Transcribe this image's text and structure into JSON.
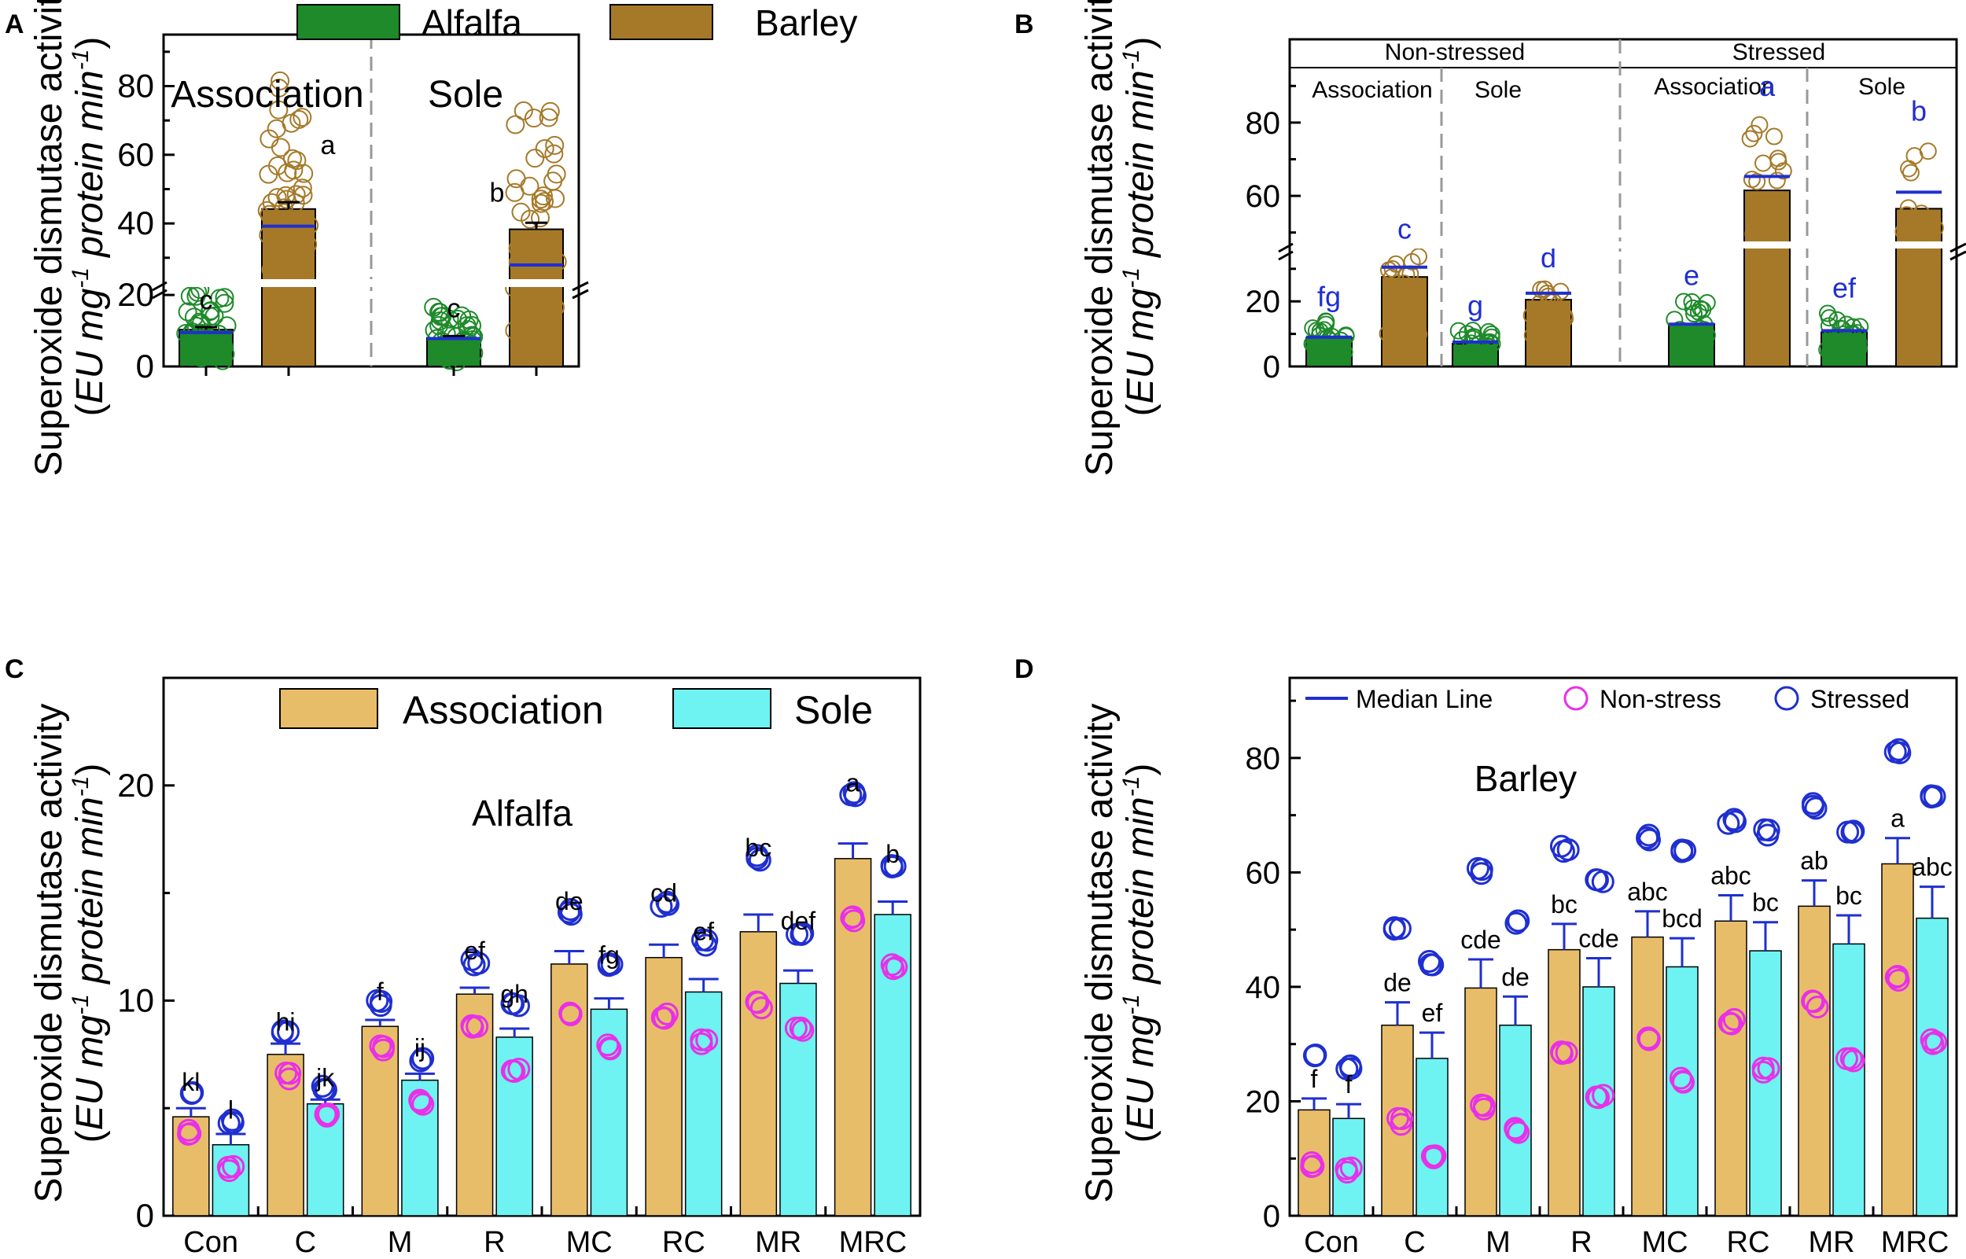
{
  "panel_labels": {
    "A": "A",
    "B": "B",
    "C": "C",
    "D": "D"
  },
  "ylabel_line1": "Superoxide dismutase activity",
  "ylabel_line2_prefix": "(EU mg",
  "ylabel_sup1": "-1",
  "ylabel_line2_mid": " protein min",
  "ylabel_sup2": "-1",
  "ylabel_line2_suffix": ")",
  "colors": {
    "alfalfa": "#1e8a2a",
    "barley": "#a57928",
    "association": "#e8bd6a",
    "sole": "#6ff2f2",
    "median": "#1f2fd0",
    "stressed": "#1f2fd0",
    "nonstress": "#e830e8",
    "letters_blue": "#1f2fd0"
  },
  "chart_data": [
    {
      "panel": "A",
      "type": "bar",
      "legend": [
        "Alfalfa",
        "Barley"
      ],
      "groups": [
        "Association",
        "Sole"
      ],
      "bars": [
        {
          "group": "Association",
          "species": "Alfalfa",
          "value": 10.3,
          "err": 0.7,
          "median": 9.5,
          "letter": "c"
        },
        {
          "group": "Association",
          "species": "Barley",
          "value": 44.2,
          "err": 2.0,
          "median": 39.2,
          "letter": "a"
        },
        {
          "group": "Sole",
          "species": "Alfalfa",
          "value": 8.0,
          "err": 0.5,
          "median": 7.8,
          "letter": "c"
        },
        {
          "group": "Sole",
          "species": "Barley",
          "value": 38.3,
          "err": 1.9,
          "median": 27.9,
          "letter": "b"
        }
      ],
      "yticks": [
        "0",
        "20",
        "40",
        "60",
        "80"
      ],
      "ylim": [
        0,
        95
      ],
      "axis_break": [
        22,
        24
      ]
    },
    {
      "panel": "B",
      "type": "bar",
      "header_top": [
        "Non-stressed",
        "Stressed"
      ],
      "header_sub": [
        "Association",
        "Sole",
        "Association",
        "Sole"
      ],
      "bars": [
        {
          "cond": "Non-stressed",
          "group": "Association",
          "species": "Alfalfa",
          "value": 8.8,
          "median": 9.0,
          "letter": "fg"
        },
        {
          "cond": "Non-stressed",
          "group": "Association",
          "species": "Barley",
          "value": 27.5,
          "median": 30.5,
          "letter": "c"
        },
        {
          "cond": "Non-stressed",
          "group": "Sole",
          "species": "Alfalfa",
          "value": 7.0,
          "median": 7.5,
          "letter": "g"
        },
        {
          "cond": "Non-stressed",
          "group": "Sole",
          "species": "Barley",
          "value": 20.5,
          "median": 22.5,
          "letter": "d"
        },
        {
          "cond": "Stressed",
          "group": "Association",
          "species": "Alfalfa",
          "value": 13.0,
          "median": 13.0,
          "letter": "e"
        },
        {
          "cond": "Stressed",
          "group": "Association",
          "species": "Barley",
          "value": 61.5,
          "median": 65.3,
          "letter": "a"
        },
        {
          "cond": "Stressed",
          "group": "Sole",
          "species": "Alfalfa",
          "value": 10.5,
          "median": 11.0,
          "letter": "ef"
        },
        {
          "cond": "Stressed",
          "group": "Sole",
          "species": "Barley",
          "value": 56.5,
          "median": 61.0,
          "letter": "b"
        }
      ],
      "yticks": [
        "0",
        "20",
        "60",
        "80"
      ],
      "ylim": [
        0,
        95
      ],
      "axis_break": [
        36,
        48
      ]
    },
    {
      "panel": "C",
      "type": "bar",
      "title": "Alfalfa",
      "legend": [
        "Association",
        "Sole"
      ],
      "categories": [
        "Con",
        "C",
        "M",
        "R",
        "MC",
        "RC",
        "MR",
        "MRC"
      ],
      "series": [
        {
          "name": "Association",
          "values": [
            4.6,
            7.5,
            8.8,
            10.3,
            11.7,
            12.0,
            13.2,
            16.6
          ],
          "err": [
            0.4,
            0.5,
            0.3,
            0.3,
            0.6,
            0.6,
            0.8,
            0.7
          ],
          "letters": [
            "kl",
            "hi",
            "f",
            "ef",
            "de",
            "cd",
            "bc",
            "a"
          ],
          "stressed": [
            5.7,
            8.5,
            9.9,
            11.8,
            14.1,
            14.5,
            16.6,
            19.6
          ],
          "nonstress": [
            3.9,
            6.5,
            7.8,
            8.8,
            9.4,
            9.3,
            9.8,
            13.8
          ]
        },
        {
          "name": "Sole",
          "values": [
            3.3,
            5.2,
            6.3,
            8.3,
            9.6,
            10.4,
            10.8,
            14.0
          ],
          "err": [
            0.5,
            0.2,
            0.3,
            0.4,
            0.5,
            0.6,
            0.6,
            0.6
          ],
          "letters": [
            "l",
            "jk",
            "ij",
            "gh",
            "fg",
            "ef",
            "def",
            "b"
          ],
          "stressed": [
            4.4,
            5.9,
            7.3,
            9.8,
            11.6,
            12.7,
            13.2,
            16.3
          ],
          "nonstress": [
            2.2,
            4.6,
            5.3,
            6.8,
            7.8,
            8.1,
            8.6,
            11.6
          ]
        }
      ],
      "yticks": [
        "0",
        "10",
        "20"
      ],
      "ylim": [
        0,
        25
      ]
    },
    {
      "panel": "D",
      "type": "bar",
      "title": "Barley",
      "legend": [
        "Median Line",
        "Non-stress",
        "Stressed"
      ],
      "categories": [
        "Con",
        "C",
        "M",
        "R",
        "MC",
        "RC",
        "MR",
        "MRC"
      ],
      "series": [
        {
          "name": "Association",
          "values": [
            18.5,
            33.3,
            39.8,
            46.5,
            48.7,
            51.5,
            54.1,
            61.5
          ],
          "err": [
            2.0,
            4.0,
            5.0,
            4.5,
            4.5,
            4.5,
            4.5,
            4.5
          ],
          "letters": [
            "f",
            "de",
            "cde",
            "bc",
            "abc",
            "abc",
            "ab",
            "a"
          ],
          "stressed": [
            28.0,
            50.0,
            60.3,
            64.2,
            66.0,
            69.0,
            71.5,
            81.2
          ],
          "nonstress": [
            9.0,
            16.5,
            19.0,
            28.5,
            31.0,
            34.0,
            37.0,
            41.5
          ]
        },
        {
          "name": "Sole",
          "values": [
            17.0,
            27.5,
            33.3,
            40.0,
            43.5,
            46.3,
            47.5,
            52.0
          ],
          "err": [
            2.5,
            4.5,
            5.0,
            5.0,
            5.0,
            5.0,
            5.0,
            5.5
          ],
          "letters": [
            "f",
            "ef",
            "de",
            "cde",
            "bcd",
            "bc",
            "bc",
            "abc"
          ],
          "stressed": [
            26.0,
            44.0,
            51.5,
            58.5,
            63.5,
            67.0,
            67.5,
            73.5
          ],
          "nonstress": [
            8.0,
            10.0,
            15.0,
            21.0,
            23.5,
            25.5,
            27.0,
            30.5
          ]
        }
      ],
      "yticks": [
        "0",
        "20",
        "40",
        "60",
        "80"
      ],
      "ylim": [
        0,
        94
      ]
    }
  ]
}
